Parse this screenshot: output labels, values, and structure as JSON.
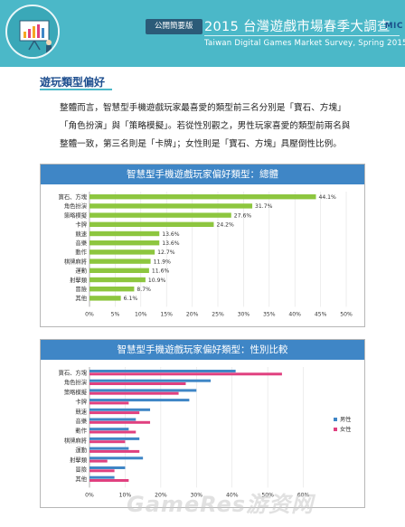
{
  "header": {
    "logo": "MIC",
    "badge": "公開簡要版",
    "title": "2015 台灣遊戲市場春季大調查",
    "subtitle": "Taiwan Digital Games Market Survey, Spring 2015",
    "icon": "chart-presentation-icon",
    "bg_color": "#4bb8c8"
  },
  "section": {
    "title": "遊玩類型偏好",
    "paragraph": [
      "整體而言，智慧型手機遊戲玩家最喜愛的類型前三名分別是「寶石、方塊」",
      "「角色扮演」與「策略模擬」。若從性別觀之，男性玩家喜愛的類型前兩名與",
      "整體一致，第三名則是「卡牌」；女性則是「寶石、方塊」具壓倒性比例。"
    ]
  },
  "watermark": "GameRes游资网",
  "chart_data": [
    {
      "type": "bar",
      "orientation": "horizontal",
      "title": "智慧型手機遊戲玩家偏好類型：總體",
      "categories": [
        "寶石、方塊",
        "角色扮演",
        "策略模擬",
        "卡牌",
        "競速",
        "音樂",
        "動作",
        "棋牌麻將",
        "運動",
        "射擊類",
        "冒險",
        "其他"
      ],
      "values": [
        44.1,
        31.7,
        27.6,
        24.2,
        13.6,
        13.6,
        12.7,
        11.9,
        11.6,
        10.9,
        8.7,
        6.1
      ],
      "value_labels": [
        "44.1%",
        "31.7%",
        "27.6%",
        "24.2%",
        "13.6%",
        "13.6%",
        "12.7%",
        "11.9%",
        "11.6%",
        "10.9%",
        "8.7%",
        "6.1%"
      ],
      "xlim": [
        0,
        50
      ],
      "xticks": [
        "0%",
        "5%",
        "10%",
        "15%",
        "20%",
        "25%",
        "30%",
        "35%",
        "40%",
        "45%",
        "50%"
      ],
      "color": "#8dc63f",
      "grid": true
    },
    {
      "type": "bar",
      "orientation": "horizontal",
      "title": "智慧型手機遊戲玩家偏好類型：性別比較",
      "categories": [
        "寶石、方塊",
        "角色扮演",
        "策略模擬",
        "卡牌",
        "競速",
        "音樂",
        "動作",
        "棋牌麻將",
        "運動",
        "射擊類",
        "冒險",
        "其他"
      ],
      "series": [
        {
          "name": "男性",
          "color": "#3f86c6",
          "values": [
            41,
            34,
            30,
            28,
            17,
            13,
            11,
            14,
            11,
            15,
            10,
            7
          ]
        },
        {
          "name": "女性",
          "color": "#e0407f",
          "values": [
            54,
            27,
            25,
            11,
            14,
            17,
            13,
            10,
            14,
            5,
            7,
            11
          ]
        }
      ],
      "xlim": [
        0,
        70
      ],
      "xticks": [
        "0%",
        "10%",
        "20%",
        "30%",
        "40%",
        "50%",
        "60%"
      ],
      "legend_position": "right",
      "grid": true
    }
  ]
}
